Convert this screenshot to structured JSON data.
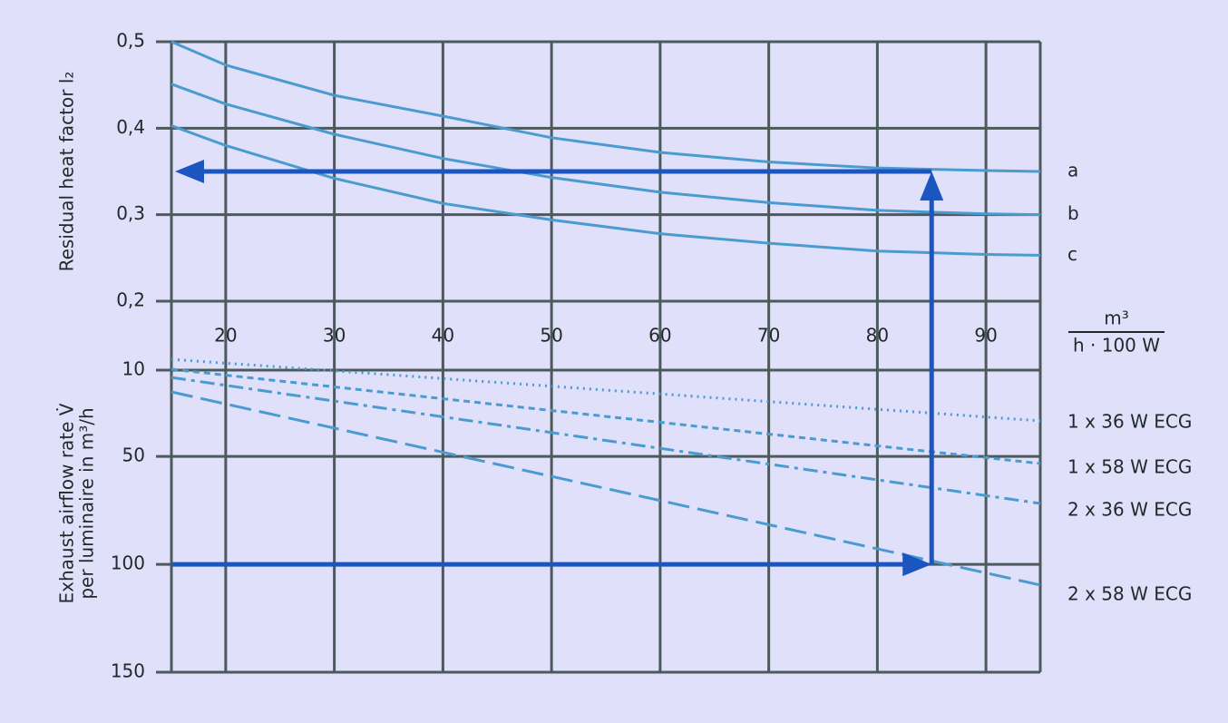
{
  "chart_data": [
    {
      "type": "line",
      "y_label": "Residual heat factor l₂",
      "x_unit_top": "m³",
      "x_unit_bottom": "h · 100 W",
      "xlim": [
        15,
        95
      ],
      "xticks": [
        20,
        30,
        40,
        50,
        60,
        70,
        80,
        90
      ],
      "ylim": [
        0.2,
        0.5
      ],
      "yticks": [
        {
          "value": 0.5,
          "label": "0,5"
        },
        {
          "value": 0.4,
          "label": "0,4"
        },
        {
          "value": 0.3,
          "label": "0,3"
        },
        {
          "value": 0.2,
          "label": "0,2"
        }
      ],
      "grid": true,
      "x": [
        15,
        20,
        30,
        40,
        50,
        60,
        70,
        80,
        90,
        95
      ],
      "series": [
        {
          "name": "a",
          "color": "#4a9bd0",
          "values": [
            0.5,
            0.473,
            0.438,
            0.414,
            0.389,
            0.372,
            0.361,
            0.354,
            0.351,
            0.35
          ]
        },
        {
          "name": "b",
          "color": "#4a9bd0",
          "values": [
            0.451,
            0.428,
            0.393,
            0.365,
            0.343,
            0.326,
            0.314,
            0.305,
            0.301,
            0.3
          ]
        },
        {
          "name": "c",
          "color": "#4a9bd0",
          "values": [
            0.403,
            0.38,
            0.342,
            0.313,
            0.294,
            0.278,
            0.267,
            0.258,
            0.254,
            0.253
          ]
        }
      ]
    },
    {
      "type": "line",
      "y_label": [
        "Exhaust airflow rate V̇",
        "per luminaire in m³/h"
      ],
      "xlim": [
        15,
        95
      ],
      "ylim": [
        10,
        150
      ],
      "yticks": [
        10,
        50,
        100,
        150
      ],
      "inverted": true,
      "grid": true,
      "x": [
        15,
        95
      ],
      "series": [
        {
          "name": "1 x 36 W ECG",
          "color": "#4a9bd0",
          "style": "dotted",
          "values": [
            5,
            33.5
          ]
        },
        {
          "name": "1 x 58 W ECG",
          "color": "#4a9bd0",
          "style": "dashed",
          "values": [
            9.6,
            53.3
          ]
        },
        {
          "name": "2 x 36 W ECG",
          "color": "#4a9bd0",
          "style": "dashdot",
          "values": [
            13.4,
            71.8
          ]
        },
        {
          "name": "2 x 58 W ECG",
          "color": "#4a9bd0",
          "style": "longdash",
          "values": [
            20.1,
            109.6
          ]
        }
      ],
      "annotation": {
        "x": 85,
        "airflow": 100,
        "factor": 0.35,
        "color": "#1a55c0"
      }
    }
  ]
}
